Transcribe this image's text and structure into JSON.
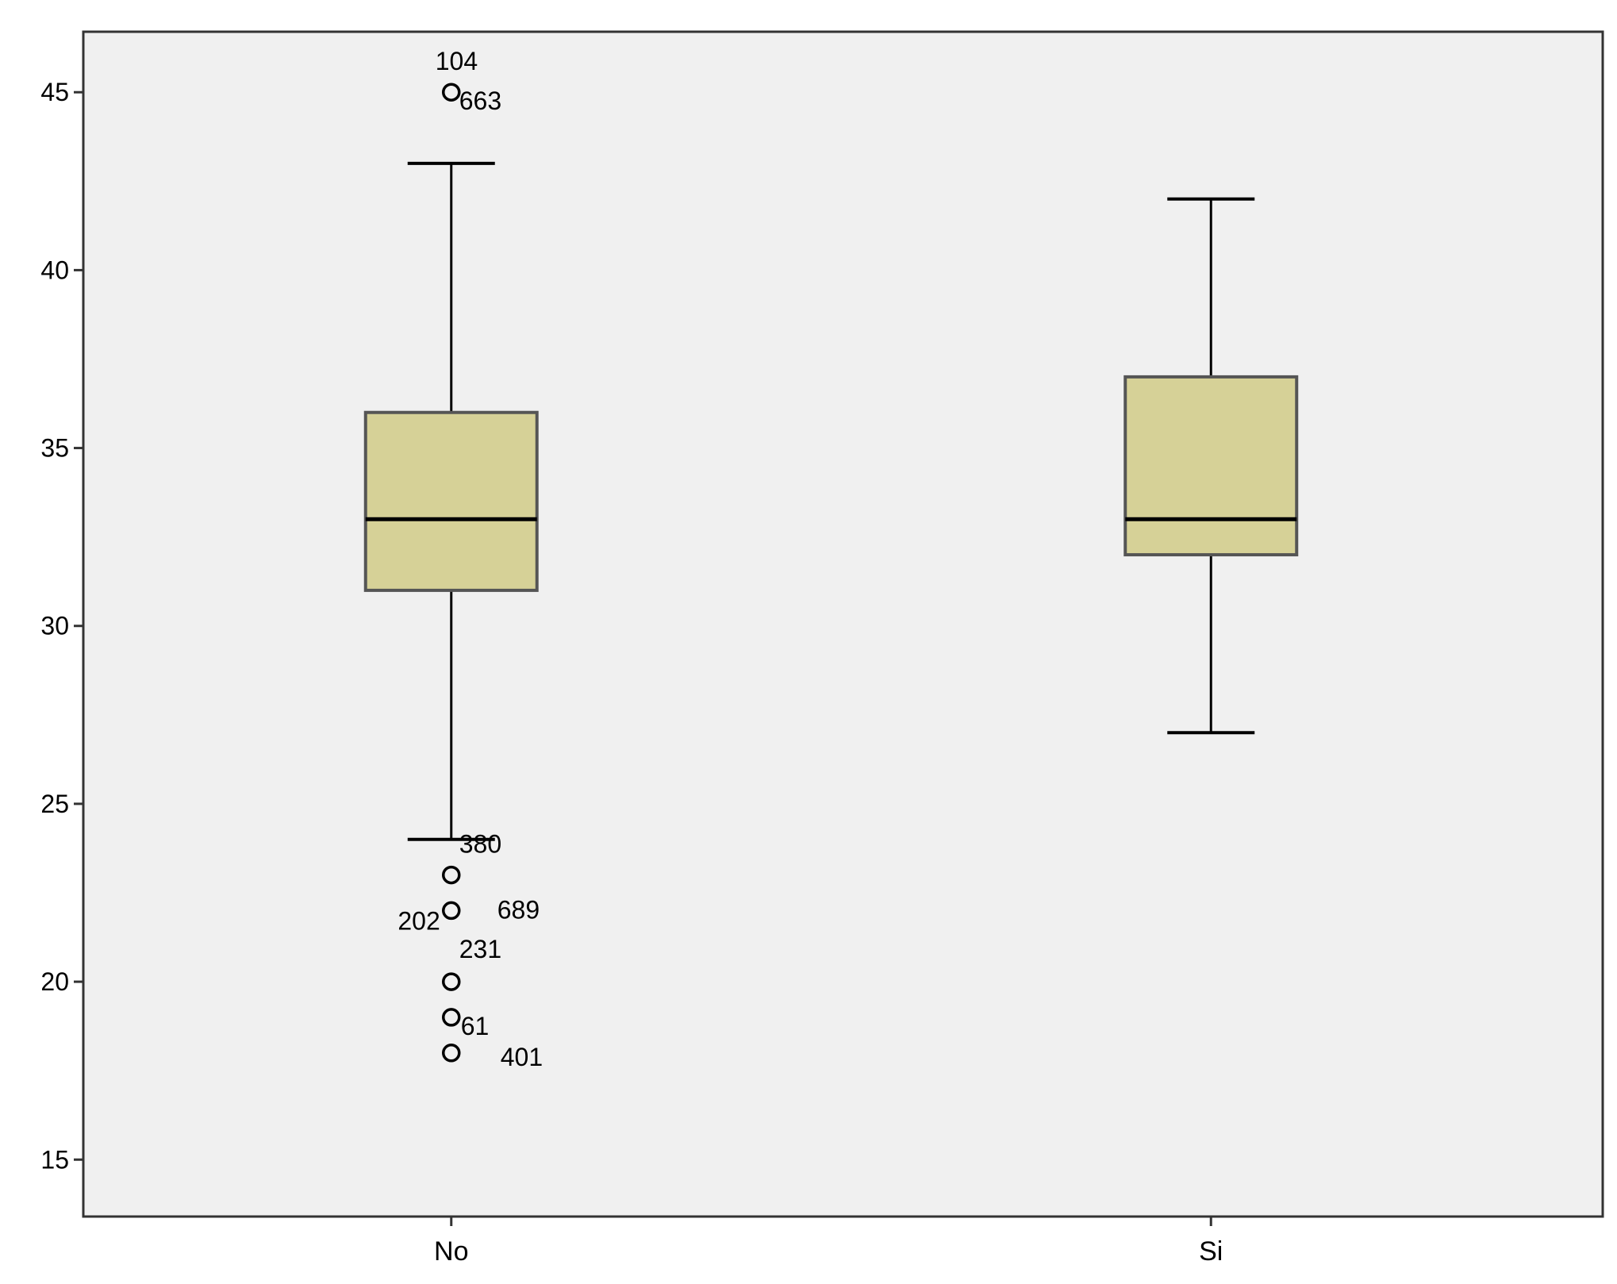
{
  "chart_data": {
    "type": "box",
    "categories": [
      "No",
      "Si"
    ],
    "ylim": [
      13.4,
      46.7
    ],
    "yticks": [
      15,
      20,
      25,
      30,
      35,
      40,
      45
    ],
    "grid": false,
    "title": "",
    "xlabel": "",
    "ylabel": "",
    "colors": {
      "plot_background": "#f0f0f0",
      "box_fill": "#d6d197",
      "box_edge": "#555555",
      "line": "#000000"
    },
    "boxes": [
      {
        "category": "No",
        "whisker_low": 24,
        "q1": 31,
        "median": 33,
        "q3": 36,
        "whisker_high": 43,
        "outliers": [
          {
            "value": 45,
            "label": "104"
          },
          {
            "value": 45,
            "label": "663"
          },
          {
            "value": 23,
            "label": "380"
          },
          {
            "value": 22,
            "label": "202"
          },
          {
            "value": 22,
            "label": "689"
          },
          {
            "value": 20,
            "label": "231"
          },
          {
            "value": 19,
            "label": "61"
          },
          {
            "value": 18,
            "label": "401"
          }
        ]
      },
      {
        "category": "Si",
        "whisker_low": 27,
        "q1": 32,
        "median": 33,
        "q3": 37,
        "whisker_high": 42,
        "outliers": []
      }
    ]
  }
}
